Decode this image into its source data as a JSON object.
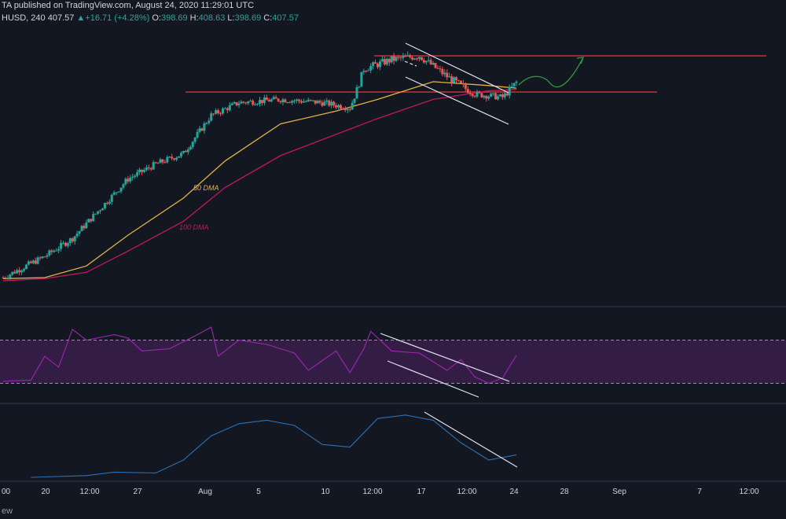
{
  "header": {
    "publisher_line": "TA published on TradingView.com, August 24, 2020 11:29:01 UTC",
    "symbol": "HUSD, 240",
    "last_price": "407.57",
    "arrow": "▲",
    "change": "+16.71 (+4.28%)",
    "ohlc": [
      {
        "key": "O:",
        "value": "398.69"
      },
      {
        "key": "H:",
        "value": "408.63"
      },
      {
        "key": "L:",
        "value": "398.69"
      },
      {
        "key": "C:",
        "value": "407.57"
      }
    ]
  },
  "footer": {
    "text": "ew"
  },
  "colors": {
    "background": "#131722",
    "up": "#26a69a",
    "down": "#ef5350",
    "dma50": "#e3b341",
    "dma100": "#c2185b",
    "resistance": "#e53935",
    "channel": "#e0e3eb",
    "rsi": "#9c27b0",
    "rsi_band": "#3b1f4a",
    "indicator": "#2f6fb0",
    "projection_green": "#2e9e3c",
    "axis_text": "#d1d4dc",
    "pane_border": "#363a45"
  },
  "chart_data": [
    {
      "type": "candlestick",
      "pane": "price",
      "annotations": [
        "50 DMA",
        "100 DMA"
      ],
      "x": {
        "tick_labels": [
          "00",
          "20",
          "12:00",
          "27",
          "Aug",
          "5",
          "10",
          "12:00",
          "17",
          "12:00",
          "24",
          "28",
          "Sep",
          "7",
          "12:00"
        ]
      },
      "close_path": [
        {
          "x": "Jul 18",
          "y": 225
        },
        {
          "x": "Jul 21",
          "y": 245
        },
        {
          "x": "Jul 23",
          "y": 262
        },
        {
          "x": "Jul 25",
          "y": 290
        },
        {
          "x": "Jul 27",
          "y": 318
        },
        {
          "x": "Jul 29",
          "y": 332
        },
        {
          "x": "Jul 31",
          "y": 342
        },
        {
          "x": "Aug 2",
          "y": 378
        },
        {
          "x": "Aug 4",
          "y": 390
        },
        {
          "x": "Aug 7",
          "y": 393
        },
        {
          "x": "Aug 10",
          "y": 390
        },
        {
          "x": "Aug 12",
          "y": 385
        },
        {
          "x": "Aug 13",
          "y": 418
        },
        {
          "x": "Aug 15",
          "y": 425
        },
        {
          "x": "Aug 17",
          "y": 428
        },
        {
          "x": "Aug 19",
          "y": 412
        },
        {
          "x": "Aug 21",
          "y": 398
        },
        {
          "x": "Aug 23",
          "y": 395
        },
        {
          "x": "Aug 24",
          "y": 407.57
        }
      ],
      "resistance_levels": [
        428,
        400
      ],
      "dma50_path": [
        {
          "x": "Jul 18",
          "y": 224
        },
        {
          "x": "Jul 21",
          "y": 225
        },
        {
          "x": "Jul 24",
          "y": 236
        },
        {
          "x": "Jul 27",
          "y": 265
        },
        {
          "x": "Jul 31",
          "y": 300
        },
        {
          "x": "Aug 3",
          "y": 335
        },
        {
          "x": "Aug 7",
          "y": 370
        },
        {
          "x": "Aug 11",
          "y": 382
        },
        {
          "x": "Aug 14",
          "y": 393
        },
        {
          "x": "Aug 18",
          "y": 408
        },
        {
          "x": "Aug 22",
          "y": 405
        },
        {
          "x": "Aug 24",
          "y": 403
        }
      ],
      "dma100_path": [
        {
          "x": "Jul 18",
          "y": 222
        },
        {
          "x": "Jul 21",
          "y": 224
        },
        {
          "x": "Jul 24",
          "y": 230
        },
        {
          "x": "Jul 27",
          "y": 250
        },
        {
          "x": "Jul 31",
          "y": 278
        },
        {
          "x": "Aug 3",
          "y": 310
        },
        {
          "x": "Aug 7",
          "y": 340
        },
        {
          "x": "Aug 11",
          "y": 360
        },
        {
          "x": "Aug 14",
          "y": 375
        },
        {
          "x": "Aug 18",
          "y": 393
        },
        {
          "x": "Aug 22",
          "y": 401
        },
        {
          "x": "Aug 24",
          "y": 402
        }
      ]
    },
    {
      "type": "line",
      "pane": "rsi",
      "bands": [
        70,
        30
      ],
      "ylim": [
        10,
        90
      ],
      "points": [
        {
          "x": "Jul 18",
          "y": 32
        },
        {
          "x": "Jul 20",
          "y": 33
        },
        {
          "x": "Jul 21",
          "y": 55
        },
        {
          "x": "Jul 22",
          "y": 45
        },
        {
          "x": "Jul 23",
          "y": 80
        },
        {
          "x": "Jul 24",
          "y": 70
        },
        {
          "x": "Jul 26",
          "y": 75
        },
        {
          "x": "Jul 27",
          "y": 72
        },
        {
          "x": "Jul 28",
          "y": 60
        },
        {
          "x": "Jul 30",
          "y": 62
        },
        {
          "x": "Aug 1",
          "y": 75
        },
        {
          "x": "Aug 2",
          "y": 82
        },
        {
          "x": "Aug 2 12:00",
          "y": 55
        },
        {
          "x": "Aug 4",
          "y": 70
        },
        {
          "x": "Aug 6",
          "y": 66
        },
        {
          "x": "Aug 8",
          "y": 58
        },
        {
          "x": "Aug 9",
          "y": 42
        },
        {
          "x": "Aug 11",
          "y": 60
        },
        {
          "x": "Aug 12",
          "y": 40
        },
        {
          "x": "Aug 13",
          "y": 62
        },
        {
          "x": "Aug 13 12:00",
          "y": 78
        },
        {
          "x": "Aug 15",
          "y": 60
        },
        {
          "x": "Aug 17",
          "y": 58
        },
        {
          "x": "Aug 18",
          "y": 50
        },
        {
          "x": "Aug 19",
          "y": 42
        },
        {
          "x": "Aug 20",
          "y": 52
        },
        {
          "x": "Aug 21",
          "y": 36
        },
        {
          "x": "Aug 22",
          "y": 30
        },
        {
          "x": "Aug 23",
          "y": 35
        },
        {
          "x": "Aug 24",
          "y": 56
        }
      ]
    },
    {
      "type": "line",
      "pane": "indicator",
      "points": [
        {
          "x": "Jul 20",
          "y": 0
        },
        {
          "x": "Jul 24",
          "y": 2
        },
        {
          "x": "Jul 26",
          "y": 6
        },
        {
          "x": "Jul 29",
          "y": 5
        },
        {
          "x": "Jul 31",
          "y": 20
        },
        {
          "x": "Aug 2",
          "y": 48
        },
        {
          "x": "Aug 4",
          "y": 62
        },
        {
          "x": "Aug 6",
          "y": 66
        },
        {
          "x": "Aug 8",
          "y": 60
        },
        {
          "x": "Aug 10",
          "y": 38
        },
        {
          "x": "Aug 12",
          "y": 35
        },
        {
          "x": "Aug 14",
          "y": 68
        },
        {
          "x": "Aug 16",
          "y": 72
        },
        {
          "x": "Aug 18",
          "y": 66
        },
        {
          "x": "Aug 20",
          "y": 40
        },
        {
          "x": "Aug 22",
          "y": 20
        },
        {
          "x": "Aug 24",
          "y": 26
        }
      ]
    }
  ]
}
